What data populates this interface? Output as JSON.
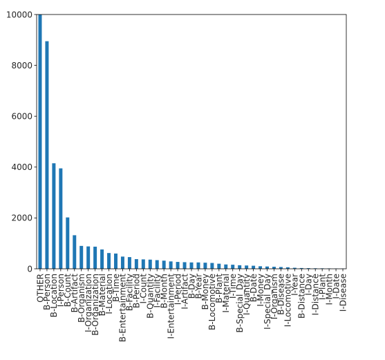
{
  "chart_data": {
    "type": "bar",
    "title": "",
    "xlabel": "",
    "ylabel": "",
    "ylim": [
      0,
      10000
    ],
    "yticks": [
      0,
      2000,
      4000,
      6000,
      8000,
      10000
    ],
    "legend": false,
    "grid": false,
    "bar_color": "#1f77b4",
    "categories": [
      "OTHER",
      "B-Person",
      "B-Location",
      "I-Person",
      "B-Count",
      "B-Artifact",
      "B-Organism",
      "I-Organization",
      "B-Organization",
      "B-Material",
      "I-Location",
      "B-Time",
      "B-Entertainment",
      "B-Facility",
      "B-Period",
      "I-Count",
      "B-Quantity",
      "I-Facility",
      "B-Month",
      "I-Entertainment",
      "I-Period",
      "I-Artifact",
      "B-Day",
      "B-Year",
      "B-Money",
      "B-Locomotive",
      "B-Plant",
      "I-Material",
      "I-Time",
      "B-Special_Day",
      "I-Quantity",
      "B-Date",
      "I-Money",
      "I-Special_Day",
      "I-Organism",
      "B-Disease",
      "I-Locomotive",
      "I-Year",
      "B-Distance",
      "I-Day",
      "I-Distance",
      "I-Plant",
      "I-Month",
      "I-Date",
      "I-Disease"
    ],
    "values": [
      10000,
      8950,
      4150,
      3950,
      2020,
      1320,
      900,
      880,
      870,
      760,
      620,
      600,
      480,
      460,
      380,
      370,
      360,
      340,
      320,
      290,
      270,
      260,
      250,
      250,
      240,
      230,
      200,
      170,
      160,
      140,
      130,
      120,
      100,
      90,
      80,
      70,
      60,
      40,
      30,
      25,
      20,
      18,
      15,
      12,
      10
    ]
  }
}
